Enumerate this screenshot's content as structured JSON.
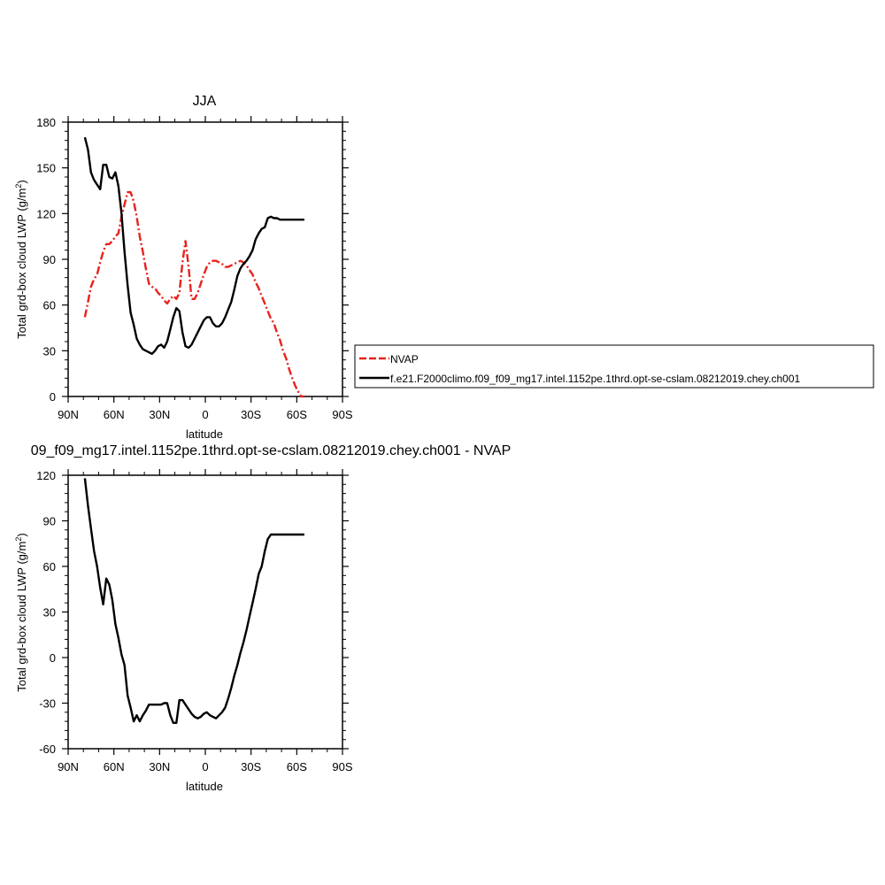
{
  "chart_data": [
    {
      "type": "line",
      "title": "JJA",
      "xlabel": "latitude",
      "ylabel": "Total grd-box cloud LWP (g/m",
      "ylabel_sup": "2",
      "ylabel_end": ")",
      "xlim": [
        90,
        -90
      ],
      "ylim": [
        0,
        180
      ],
      "yticks": [
        0,
        30,
        60,
        90,
        120,
        150,
        180
      ],
      "xticks": [
        {
          "v": 90,
          "label": "90N"
        },
        {
          "v": 60,
          "label": "60N"
        },
        {
          "v": 30,
          "label": "30N"
        },
        {
          "v": 0,
          "label": "0"
        },
        {
          "v": -30,
          "label": "30S"
        },
        {
          "v": -60,
          "label": "60S"
        },
        {
          "v": -90,
          "label": "90S"
        }
      ],
      "legend": {
        "placement": "right",
        "entries": [
          {
            "name": "NVAP",
            "color": "#e8221c",
            "dash": "dash"
          },
          {
            "name": "f.e21.F2000climo.f09_f09_mg17.intel.1152pe.1thrd.opt-se-cslam.08212019.chey.ch001",
            "color": "#000000",
            "dash": "solid"
          }
        ]
      },
      "series": [
        {
          "name": "NVAP",
          "color": "#e8221c",
          "dash": "dash",
          "x": [
            79,
            77,
            75,
            73,
            71,
            69,
            67,
            65,
            63,
            61,
            59,
            57,
            55,
            53,
            51,
            49,
            47,
            45,
            43,
            41,
            39,
            37,
            35,
            33,
            31,
            29,
            27,
            25,
            23,
            21,
            19,
            17,
            15,
            13,
            11,
            9,
            7,
            5,
            3,
            1,
            -1,
            -3,
            -5,
            -7,
            -9,
            -11,
            -13,
            -15,
            -17,
            -19,
            -21,
            -23,
            -25,
            -27,
            -29,
            -31,
            -33,
            -35,
            -37,
            -39,
            -41,
            -43,
            -45,
            -47,
            -49,
            -51,
            -53,
            -55,
            -57,
            -59,
            -61,
            -63,
            -65,
            -67
          ],
          "values": [
            52,
            62,
            72,
            77,
            80,
            88,
            95,
            100,
            100,
            102,
            105,
            107,
            118,
            126,
            134,
            134,
            128,
            118,
            105,
            95,
            84,
            74,
            72,
            71,
            68,
            66,
            63,
            61,
            64,
            66,
            64,
            68,
            88,
            102,
            85,
            64,
            64,
            68,
            74,
            80,
            85,
            88,
            89,
            89,
            88,
            87,
            85,
            85,
            86,
            87,
            88,
            89,
            88,
            86,
            83,
            80,
            75,
            71,
            66,
            61,
            56,
            51,
            48,
            42,
            37,
            30,
            25,
            18,
            12,
            7,
            3,
            0,
            0,
            0
          ]
        },
        {
          "name": "f.e21.F2000climo.f09_f09_mg17.intel.1152pe.1thrd.opt-se-cslam.08212019.chey.ch001",
          "color": "#000000",
          "dash": "solid",
          "x": [
            79,
            77,
            75,
            73,
            71,
            69,
            67,
            65,
            63,
            61,
            59,
            57,
            55,
            53,
            51,
            49,
            47,
            45,
            43,
            41,
            39,
            37,
            35,
            33,
            31,
            29,
            27,
            25,
            23,
            21,
            19,
            17,
            15,
            13,
            11,
            9,
            7,
            5,
            3,
            1,
            -1,
            -3,
            -5,
            -7,
            -9,
            -11,
            -13,
            -15,
            -17,
            -19,
            -21,
            -23,
            -25,
            -27,
            -29,
            -31,
            -33,
            -35,
            -37,
            -39,
            -41,
            -43,
            -45,
            -47,
            -49,
            -51,
            -53,
            -55,
            -57,
            -59,
            -61,
            -63,
            -65,
            -67
          ],
          "values": [
            170,
            162,
            147,
            142,
            139,
            136,
            152,
            152,
            144,
            143,
            147,
            138,
            120,
            95,
            73,
            55,
            47,
            38,
            34,
            31,
            30,
            29,
            28,
            30,
            33,
            34,
            32,
            36,
            44,
            52,
            58,
            56,
            42,
            33,
            32,
            34,
            38,
            42,
            46,
            50,
            52,
            52,
            48,
            46,
            46,
            48,
            52,
            57,
            62,
            70,
            79,
            84,
            87,
            89,
            92,
            96,
            103,
            107,
            110,
            111,
            117,
            118,
            117,
            117,
            116,
            116,
            116,
            116,
            116,
            116,
            116,
            116,
            116,
            116
          ]
        }
      ]
    },
    {
      "type": "line",
      "title": "09_f09_mg17.intel.1152pe.1thrd.opt-se-cslam.08212019.chey.ch001 - NVAP",
      "xlabel": "latitude",
      "ylabel": "Total grd-box cloud LWP (g/m",
      "ylabel_sup": "2",
      "ylabel_end": ")",
      "xlim": [
        90,
        -90
      ],
      "ylim": [
        -60,
        120
      ],
      "yticks": [
        -60,
        -30,
        0,
        30,
        60,
        90,
        120
      ],
      "xticks": [
        {
          "v": 90,
          "label": "90N"
        },
        {
          "v": 60,
          "label": "60N"
        },
        {
          "v": 30,
          "label": "30N"
        },
        {
          "v": 0,
          "label": "0"
        },
        {
          "v": -30,
          "label": "30S"
        },
        {
          "v": -60,
          "label": "60S"
        },
        {
          "v": -90,
          "label": "90S"
        }
      ],
      "series": [
        {
          "name": "",
          "color": "#000000",
          "dash": "solid",
          "x": [
            79,
            77,
            75,
            73,
            71,
            69,
            67,
            65,
            63,
            61,
            59,
            57,
            55,
            53,
            51,
            49,
            47,
            45,
            43,
            41,
            39,
            37,
            35,
            33,
            31,
            29,
            27,
            25,
            23,
            21,
            19,
            17,
            15,
            13,
            11,
            9,
            7,
            5,
            3,
            1,
            -1,
            -3,
            -5,
            -7,
            -9,
            -11,
            -13,
            -15,
            -17,
            -19,
            -21,
            -23,
            -25,
            -27,
            -29,
            -31,
            -33,
            -35,
            -37,
            -39,
            -41,
            -43,
            -45,
            -47,
            -49,
            -51,
            -53,
            -55,
            -57,
            -59,
            -61,
            -63,
            -65,
            -67
          ],
          "values": [
            118,
            100,
            85,
            70,
            60,
            46,
            35,
            52,
            48,
            38,
            22,
            13,
            2,
            -5,
            -25,
            -33,
            -42,
            -38,
            -42,
            -38,
            -35,
            -31,
            -31,
            -31,
            -31,
            -31,
            -30,
            -30,
            -38,
            -43,
            -43,
            -28,
            -28,
            -31,
            -34,
            -37,
            -39,
            -40,
            -39,
            -37,
            -36,
            -38,
            -39,
            -40,
            -38,
            -36,
            -33,
            -27,
            -20,
            -12,
            -5,
            3,
            10,
            18,
            27,
            36,
            45,
            55,
            60,
            70,
            78,
            81,
            81,
            81,
            81,
            81,
            81,
            81,
            81,
            81,
            81,
            81,
            81,
            81
          ]
        }
      ]
    }
  ]
}
